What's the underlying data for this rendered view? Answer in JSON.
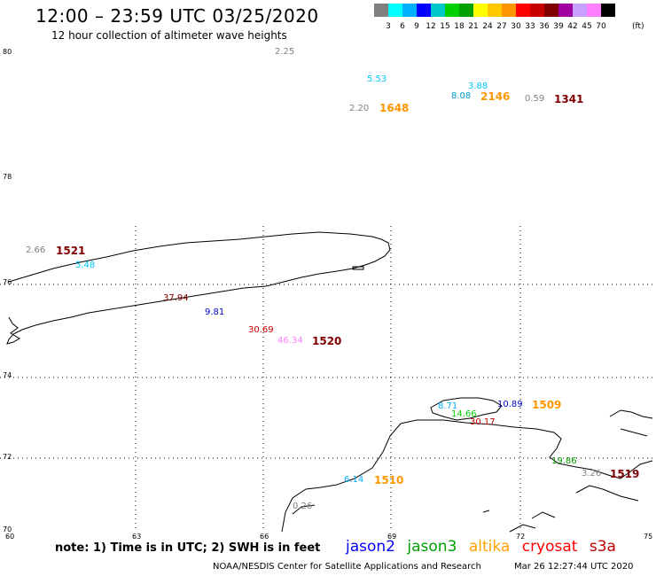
{
  "title": "12:00 – 23:59 UTC 03/25/2020",
  "subtitle": "12 hour collection of altimeter wave heights",
  "legend": {
    "colors": [
      "#808080",
      "#00ffff",
      "#00b0ff",
      "#0000ff",
      "#00c8c8",
      "#00d000",
      "#00a000",
      "#ffff00",
      "#ffc800",
      "#ff9600",
      "#ff0000",
      "#c80000",
      "#800000",
      "#a000a0",
      "#c8a0ff",
      "#ff80ff",
      "#000000"
    ],
    "labels": [
      "3",
      "6",
      "9",
      "12",
      "15",
      "18",
      "21",
      "24",
      "27",
      "30",
      "33",
      "36",
      "39",
      "42",
      "45",
      "70"
    ],
    "unit": "(ft)"
  },
  "lat_labels": [
    "80",
    "78",
    "76",
    "74",
    "72",
    "70"
  ],
  "lon_labels": [
    "60",
    "63",
    "66",
    "69",
    "72",
    "75"
  ],
  "observations": [
    {
      "text": "2.25",
      "color": "#808080",
      "type": "value"
    },
    {
      "text": "5.53",
      "color": "#00c8ff",
      "type": "value"
    },
    {
      "text": "3.88",
      "color": "#00c8ff",
      "type": "value"
    },
    {
      "text": "8.08",
      "color": "#00a0d0",
      "type": "value"
    },
    {
      "text": "2146",
      "color": "#ff9600",
      "type": "time"
    },
    {
      "text": "0.59",
      "color": "#808080",
      "type": "value"
    },
    {
      "text": "1341",
      "color": "#800000",
      "type": "time"
    },
    {
      "text": "2.20",
      "color": "#808080",
      "type": "value"
    },
    {
      "text": "1648",
      "color": "#ff9600",
      "type": "time"
    },
    {
      "text": "2.66",
      "color": "#808080",
      "type": "value"
    },
    {
      "text": "1521",
      "color": "#800000",
      "type": "time"
    },
    {
      "text": "5.48",
      "color": "#00c8ff",
      "type": "value"
    },
    {
      "text": "37.94",
      "color": "#800000",
      "type": "value"
    },
    {
      "text": "9.81",
      "color": "#0000c8",
      "type": "value"
    },
    {
      "text": "30.69",
      "color": "#c80000",
      "type": "value"
    },
    {
      "text": "46.34",
      "color": "#ff80ff",
      "type": "value"
    },
    {
      "text": "1520",
      "color": "#800000",
      "type": "time"
    },
    {
      "text": "8.71",
      "color": "#00b0ff",
      "type": "value"
    },
    {
      "text": "10.89",
      "color": "#0000c8",
      "type": "value"
    },
    {
      "text": "1509",
      "color": "#ff9600",
      "type": "time"
    },
    {
      "text": "14.66",
      "color": "#00d000",
      "type": "value"
    },
    {
      "text": "30.17",
      "color": "#c80000",
      "type": "value"
    },
    {
      "text": "19.86",
      "color": "#00a000",
      "type": "value"
    },
    {
      "text": "6.14",
      "color": "#00b0ff",
      "type": "value"
    },
    {
      "text": "1510",
      "color": "#ff9600",
      "type": "time"
    },
    {
      "text": "3.26",
      "color": "#808080",
      "type": "value"
    },
    {
      "text": "1519",
      "color": "#800000",
      "type": "time"
    },
    {
      "text": "0.26",
      "color": "#808080",
      "type": "value"
    }
  ],
  "note": "note: 1) Time is in UTC; 2) SWH is in feet",
  "satellites": [
    {
      "name": "jason2",
      "color": "#0000ff"
    },
    {
      "name": "jason3",
      "color": "#00a000"
    },
    {
      "name": "altika",
      "color": "#ffa000"
    },
    {
      "name": "cryosat",
      "color": "#ff0000"
    },
    {
      "name": "s3a",
      "color": "#c00000"
    }
  ],
  "credit": "NOAA/NESDIS Center for Satellite Applications and Research",
  "timestamp": "Mar 26 12:27:44 UTC 2020"
}
